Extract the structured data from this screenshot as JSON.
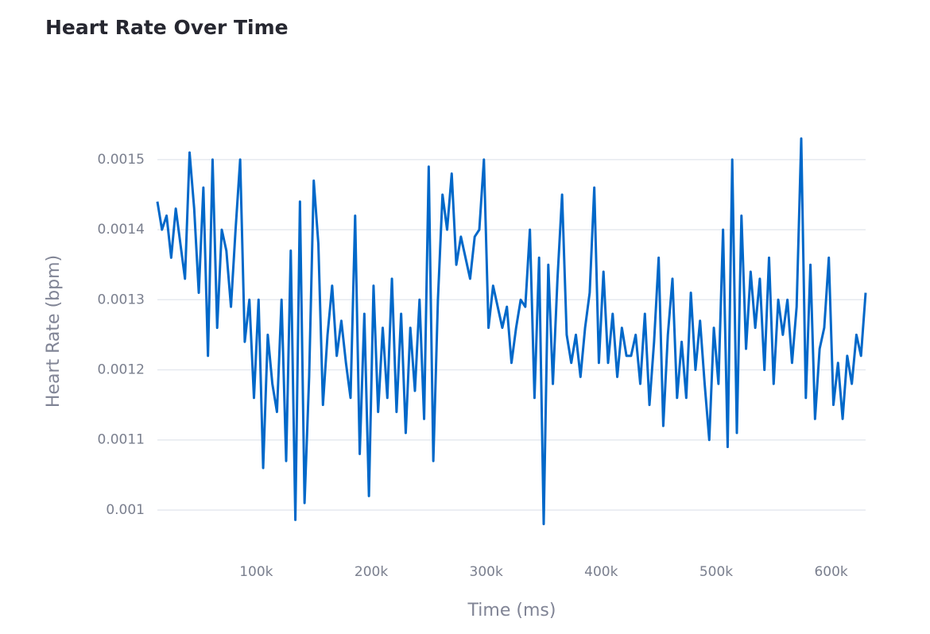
{
  "chart_data": {
    "type": "line",
    "title": "Heart Rate Over Time",
    "x_label": "Time (ms)",
    "y_label": "Heart Rate (bpm)",
    "color": "#0068c9",
    "grid": true,
    "xlim": [
      14000,
      630000
    ],
    "ylim": [
      0.000975,
      0.001535
    ],
    "xticks": [
      {
        "value": 100000,
        "label": "100k"
      },
      {
        "value": 200000,
        "label": "200k"
      },
      {
        "value": 300000,
        "label": "300k"
      },
      {
        "value": 400000,
        "label": "400k"
      },
      {
        "value": 500000,
        "label": "500k"
      },
      {
        "value": 600000,
        "label": "600k"
      }
    ],
    "yticks": [
      0.001,
      0.0011,
      0.0012,
      0.0013,
      0.0014,
      0.0015
    ],
    "x": [
      14000,
      18000,
      22000,
      26000,
      30000,
      34000,
      38000,
      42000,
      46000,
      50000,
      54000,
      58000,
      62000,
      66000,
      70000,
      74000,
      78000,
      82000,
      86000,
      90000,
      94000,
      98000,
      102000,
      106000,
      110000,
      114000,
      118000,
      122000,
      126000,
      130000,
      134000,
      138000,
      142000,
      146000,
      150000,
      154000,
      158000,
      162000,
      166000,
      170000,
      174000,
      178000,
      182000,
      186000,
      190000,
      194000,
      198000,
      202000,
      206000,
      210000,
      214000,
      218000,
      222000,
      226000,
      230000,
      234000,
      238000,
      242000,
      246000,
      250000,
      254000,
      258000,
      262000,
      266000,
      270000,
      274000,
      278000,
      282000,
      286000,
      290000,
      294000,
      298000,
      302000,
      306000,
      310000,
      314000,
      318000,
      322000,
      326000,
      330000,
      334000,
      338000,
      342000,
      346000,
      350000,
      354000,
      358000,
      362000,
      366000,
      370000,
      374000,
      378000,
      382000,
      386000,
      390000,
      394000,
      398000,
      402000,
      406000,
      410000,
      414000,
      418000,
      422000,
      426000,
      430000,
      434000,
      438000,
      442000,
      446000,
      450000,
      454000,
      458000,
      462000,
      466000,
      470000,
      474000,
      478000,
      482000,
      486000,
      490000,
      494000,
      498000,
      502000,
      506000,
      510000,
      514000,
      518000,
      522000,
      526000,
      530000,
      534000,
      538000,
      542000,
      546000,
      550000,
      554000,
      558000,
      562000,
      566000,
      570000,
      574000,
      578000,
      582000,
      586000,
      590000,
      594000,
      598000,
      602000,
      606000,
      610000,
      614000,
      618000,
      622000,
      626000,
      630000
    ],
    "values": [
      0.00144,
      0.0014,
      0.00142,
      0.00136,
      0.00143,
      0.00138,
      0.00133,
      0.00151,
      0.00143,
      0.00131,
      0.00146,
      0.00122,
      0.0015,
      0.00126,
      0.0014,
      0.00137,
      0.00129,
      0.0014,
      0.0015,
      0.00124,
      0.0013,
      0.00116,
      0.0013,
      0.00106,
      0.00125,
      0.00118,
      0.00114,
      0.0013,
      0.00107,
      0.00137,
      0.000986,
      0.00144,
      0.00101,
      0.00119,
      0.00147,
      0.00138,
      0.00115,
      0.00125,
      0.00132,
      0.00122,
      0.00127,
      0.00121,
      0.00116,
      0.00142,
      0.00108,
      0.00128,
      0.00102,
      0.00132,
      0.00114,
      0.00126,
      0.00116,
      0.00133,
      0.00114,
      0.00128,
      0.00111,
      0.00126,
      0.00117,
      0.0013,
      0.00113,
      0.00149,
      0.00107,
      0.0013,
      0.00145,
      0.0014,
      0.00148,
      0.00135,
      0.00139,
      0.00136,
      0.00133,
      0.00139,
      0.0014,
      0.0015,
      0.00126,
      0.00132,
      0.00129,
      0.00126,
      0.00129,
      0.00121,
      0.00126,
      0.0013,
      0.00129,
      0.0014,
      0.00116,
      0.00136,
      0.00098,
      0.00135,
      0.00118,
      0.00133,
      0.00145,
      0.00125,
      0.00121,
      0.00125,
      0.00119,
      0.00126,
      0.00131,
      0.00146,
      0.00121,
      0.00134,
      0.00121,
      0.00128,
      0.00119,
      0.00126,
      0.00122,
      0.00122,
      0.00125,
      0.00118,
      0.00128,
      0.00115,
      0.00124,
      0.00136,
      0.00112,
      0.00125,
      0.00133,
      0.00116,
      0.00124,
      0.00116,
      0.00131,
      0.0012,
      0.00127,
      0.00118,
      0.0011,
      0.00126,
      0.00118,
      0.0014,
      0.00109,
      0.0015,
      0.00111,
      0.00142,
      0.00123,
      0.00134,
      0.00126,
      0.00133,
      0.0012,
      0.00136,
      0.00118,
      0.0013,
      0.00125,
      0.0013,
      0.00121,
      0.00129,
      0.00153,
      0.00116,
      0.00135,
      0.00113,
      0.00123,
      0.00126,
      0.00136,
      0.00115,
      0.00121,
      0.00113,
      0.00122,
      0.00118,
      0.00125,
      0.00122,
      0.00131
    ]
  }
}
